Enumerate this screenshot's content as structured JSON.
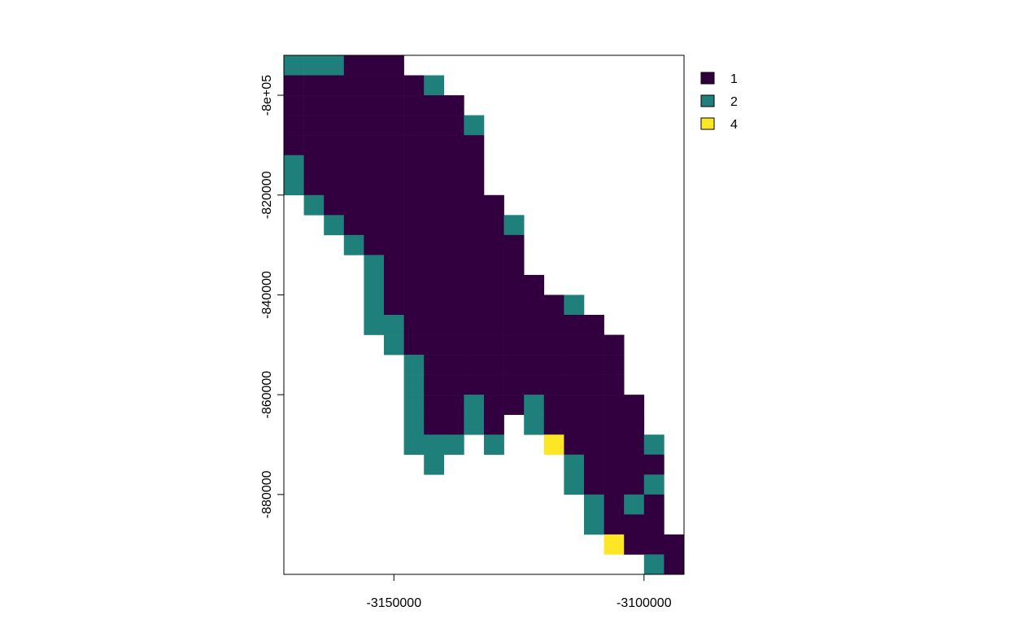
{
  "chart_data": {
    "type": "heatmap",
    "title": "",
    "xlabel": "",
    "ylabel": "",
    "xlim": [
      -3172000,
      -3092000
    ],
    "ylim": [
      -896000,
      -792000
    ],
    "cell_size": 4000,
    "x_ticks": [
      {
        "value": -3150000,
        "label": "-3150000"
      },
      {
        "value": -3100000,
        "label": "-3100000"
      }
    ],
    "y_ticks": [
      {
        "value": -800000,
        "label": "-8e+05"
      },
      {
        "value": -820000,
        "label": "-820000"
      },
      {
        "value": -840000,
        "label": "-840000"
      },
      {
        "value": -860000,
        "label": "-860000"
      },
      {
        "value": -880000,
        "label": "-880000"
      }
    ],
    "legend": {
      "position": "top-right",
      "entries": [
        {
          "value": "1",
          "label": "1",
          "color": "#33003F"
        },
        {
          "value": "2",
          "label": "2",
          "color": "#1F807B"
        },
        {
          "value": "4",
          "label": "4",
          "color": "#FDE725"
        }
      ]
    },
    "grid_rows_top_to_bottom": [
      "222111..............",
      "11111112............",
      "111111111...........",
      "1111111112..........",
      "1111111111..........",
      "2111111111..........",
      "2111111111..........",
      ".2111111111.........",
      "..2111111112........",
      "...211111111........",
      "....21111111........",
      "....211111111.......",
      "....21111111112.....",
      "....221111111111....",
      ".....211111111111...",
      "......21111111111...",
      "......21111111111...",
      "......211211211111..",
      "......21121.211111..",
      "......222.2..411112.",
      ".......2......21111.",
      "..............21112.",
      "...............2121.",
      "...............2111.",
      "................4111",
      "..................21"
    ]
  }
}
